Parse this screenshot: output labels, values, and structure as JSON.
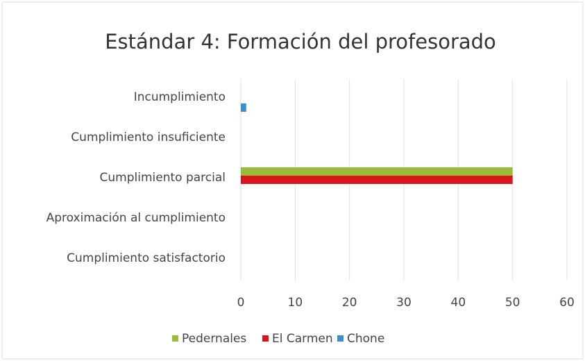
{
  "chart_data": {
    "type": "hbar",
    "title": "Estándar 4: Formación del profesorado",
    "categories": [
      "Incumplimiento",
      "Cumplimiento insuficiente",
      "Cumplimiento parcial",
      "Aproximación al cumplimiento",
      "Cumplimiento satisfactorio"
    ],
    "series": [
      {
        "name": "Pedernales",
        "color": "#9bbb3b",
        "values": [
          0,
          0,
          50,
          0,
          0
        ]
      },
      {
        "name": "El Carmen",
        "color": "#d9151b",
        "values": [
          0,
          0,
          50,
          0,
          0
        ]
      },
      {
        "name": "Chone",
        "color": "#3b8fd0",
        "values": [
          1,
          0,
          0,
          0,
          0
        ]
      }
    ],
    "xlim": [
      0,
      60
    ],
    "xticks": [
      0,
      10,
      20,
      30,
      40,
      50,
      60
    ],
    "grid": true,
    "legend": "bottom"
  }
}
